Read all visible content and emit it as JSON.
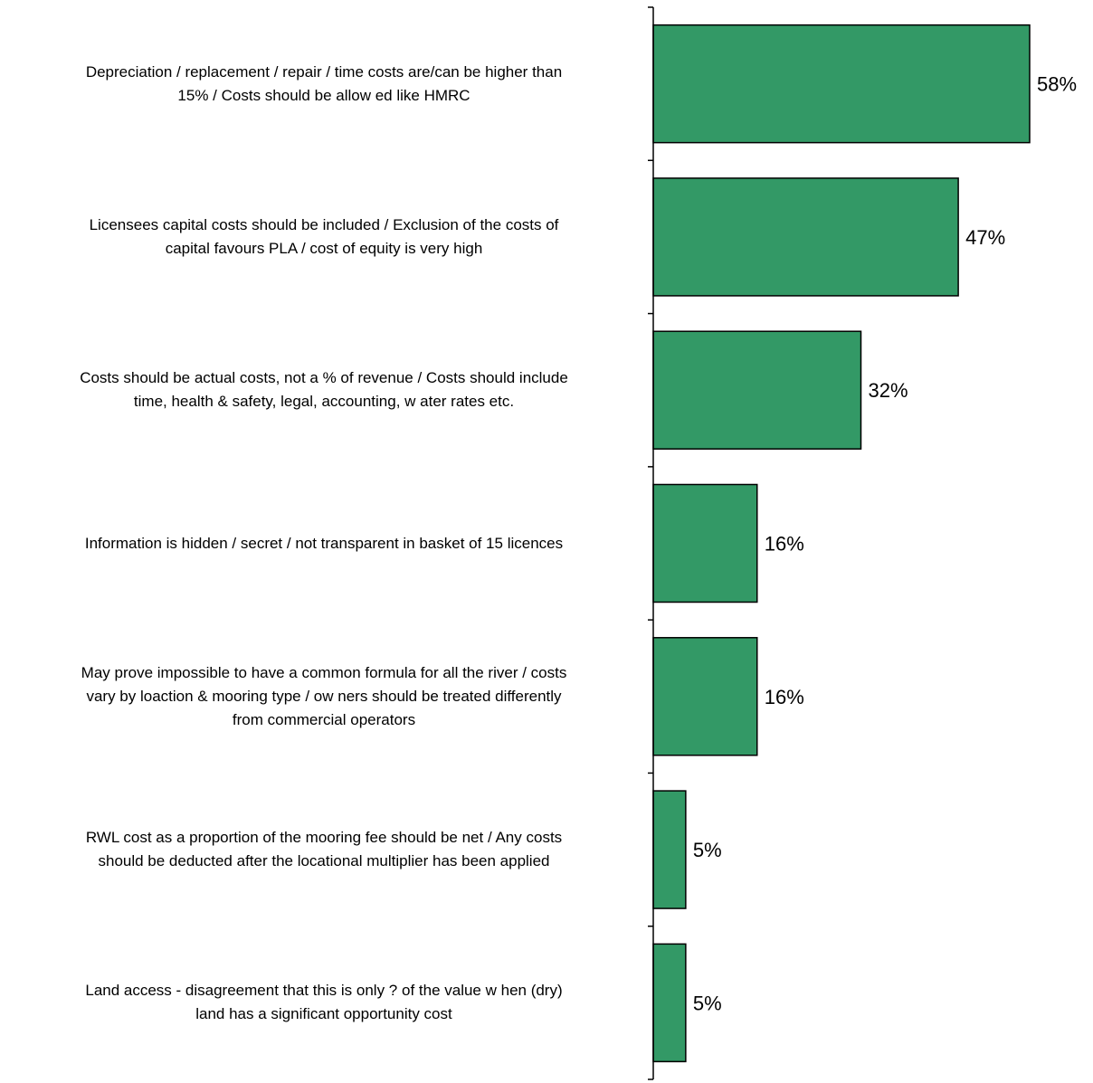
{
  "chart_data": {
    "type": "bar",
    "orientation": "horizontal",
    "categories": [
      "Depreciation / replacement / repair / time costs are/can be higher than\n15% / Costs should be allow ed like HMRC",
      "Licensees capital costs should be included / Exclusion of the costs of\ncapital favours PLA / cost of equity is very high",
      "Costs should be actual costs, not a % of revenue / Costs should include\ntime, health & safety, legal, accounting, w ater rates etc.",
      "Information is hidden / secret / not transparent in basket of 15 licences",
      "May prove impossible to have a common formula for all the river / costs\nvary by loaction & mooring type / ow ners should be treated differently\nfrom commercial operators",
      "RWL cost as a proportion of the mooring fee should be net / Any costs\nshould be deducted after the locational multiplier has been applied",
      "Land access  - disagreement that this is only ? of the value w hen (dry)\nland has a significant opportunity cost"
    ],
    "values": [
      58,
      47,
      32,
      16,
      16,
      5,
      5
    ],
    "data_labels": [
      "58%",
      "47%",
      "32%",
      "16%",
      "16%",
      "5%",
      "5%"
    ],
    "bar_color": "#339966",
    "xlim": [
      0,
      60
    ],
    "grid": false,
    "legend": "none"
  }
}
